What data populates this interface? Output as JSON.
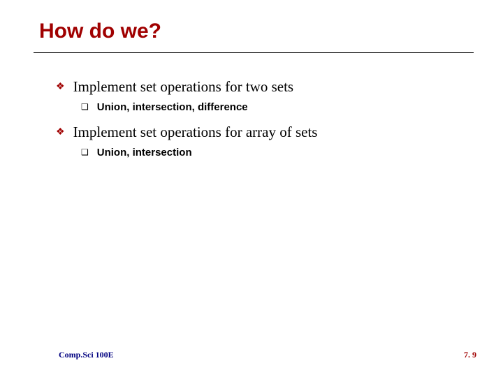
{
  "title": {
    "text": "How do we?",
    "color": "#a00000",
    "fontsize": 30
  },
  "underline": {
    "color": "#000000"
  },
  "bullets": {
    "level1_marker": "❖",
    "level1_marker_color": "#a00000",
    "level1_marker_fontsize": 14,
    "level1_text_color": "#000000",
    "level1_text_fontsize": 21,
    "level2_marker": "❑",
    "level2_marker_color": "#000000",
    "level2_marker_fontsize": 12,
    "level2_text_color": "#000000",
    "level2_text_fontsize": 15,
    "items": [
      {
        "text": "Implement set operations for two sets",
        "sub": [
          {
            "text": "Union, intersection, difference"
          }
        ]
      },
      {
        "text": "Implement set operations for array of sets",
        "sub": [
          {
            "text": "Union, intersection"
          }
        ]
      }
    ]
  },
  "footer": {
    "left": "Comp.Sci 100E",
    "right": "7. 9",
    "left_color": "#000080",
    "right_color": "#a00000",
    "fontsize": 12
  },
  "background_color": "#ffffff"
}
